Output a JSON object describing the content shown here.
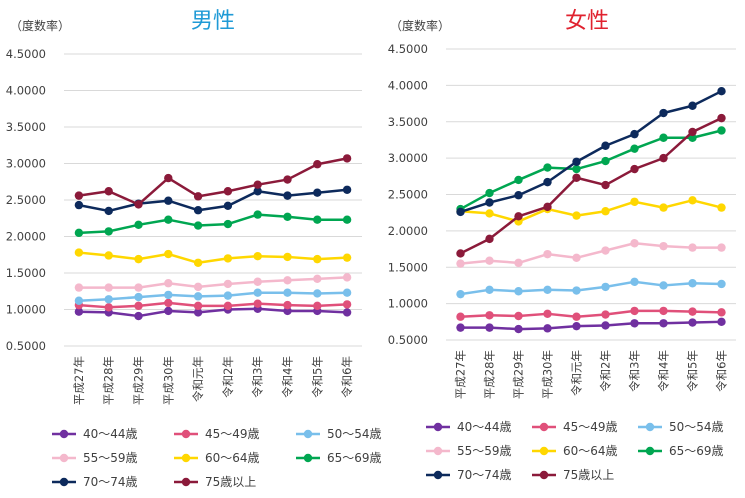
{
  "chart_data": [
    {
      "type": "line",
      "title": "男性",
      "ylabel": "（度数率）",
      "ylim": [
        0.5,
        4.5
      ],
      "yticks": [
        "0.5000",
        "1.0000",
        "1.5000",
        "2.0000",
        "2.5000",
        "3.0000",
        "3.5000",
        "4.0000",
        "4.5000"
      ],
      "categories": [
        "平成27年",
        "平成28年",
        "平成29年",
        "平成30年",
        "令和元年",
        "令和2年",
        "令和3年",
        "令和4年",
        "令和5年",
        "令和6年"
      ],
      "grid": "horizontal",
      "legend_placement": "bottom",
      "series": [
        {
          "name": "40～44歳",
          "color": "#7030a0",
          "values": [
            0.97,
            0.96,
            0.91,
            0.98,
            0.96,
            1.0,
            1.01,
            0.98,
            0.98,
            0.96
          ]
        },
        {
          "name": "45～49歳",
          "color": "#e0507a",
          "values": [
            1.06,
            1.03,
            1.05,
            1.09,
            1.05,
            1.05,
            1.08,
            1.06,
            1.05,
            1.07
          ]
        },
        {
          "name": "50～54歳",
          "color": "#79bfeb",
          "values": [
            1.12,
            1.14,
            1.17,
            1.2,
            1.18,
            1.19,
            1.23,
            1.23,
            1.22,
            1.23
          ]
        },
        {
          "name": "55～59歳",
          "color": "#f4b8cc",
          "values": [
            1.3,
            1.3,
            1.3,
            1.36,
            1.31,
            1.35,
            1.38,
            1.4,
            1.42,
            1.44
          ]
        },
        {
          "name": "60～64歳",
          "color": "#ffd700",
          "values": [
            1.78,
            1.74,
            1.69,
            1.76,
            1.64,
            1.7,
            1.73,
            1.72,
            1.69,
            1.71
          ]
        },
        {
          "name": "65～69歳",
          "color": "#00a651",
          "values": [
            2.05,
            2.07,
            2.16,
            2.23,
            2.15,
            2.17,
            2.3,
            2.27,
            2.23,
            2.23
          ]
        },
        {
          "name": "70～74歳",
          "color": "#0d2a5c",
          "values": [
            2.43,
            2.35,
            2.45,
            2.49,
            2.36,
            2.42,
            2.62,
            2.56,
            2.6,
            2.64
          ]
        },
        {
          "name": "75歳以上",
          "color": "#8b1a3a",
          "values": [
            2.56,
            2.62,
            2.44,
            2.8,
            2.55,
            2.62,
            2.71,
            2.78,
            2.99,
            3.07
          ]
        }
      ]
    },
    {
      "type": "line",
      "title": "女性",
      "ylabel": "（度数率）",
      "ylim": [
        0.5,
        4.5
      ],
      "yticks": [
        "0.5000",
        "1.0000",
        "1.5000",
        "2.0000",
        "2.5000",
        "3.0000",
        "3.5000",
        "4.0000",
        "4.5000"
      ],
      "categories": [
        "平成27年",
        "平成28年",
        "平成29年",
        "平成30年",
        "令和元年",
        "令和2年",
        "令和3年",
        "令和4年",
        "令和5年",
        "令和6年"
      ],
      "grid": "horizontal",
      "legend_placement": "bottom",
      "series": [
        {
          "name": "40～44歳",
          "color": "#7030a0",
          "values": [
            0.67,
            0.67,
            0.65,
            0.66,
            0.69,
            0.7,
            0.73,
            0.73,
            0.74,
            0.75
          ]
        },
        {
          "name": "45～49歳",
          "color": "#e0507a",
          "values": [
            0.82,
            0.84,
            0.83,
            0.86,
            0.82,
            0.85,
            0.9,
            0.9,
            0.89,
            0.88
          ]
        },
        {
          "name": "50～54歳",
          "color": "#79bfeb",
          "values": [
            1.13,
            1.19,
            1.17,
            1.19,
            1.18,
            1.23,
            1.3,
            1.25,
            1.28,
            1.27
          ]
        },
        {
          "name": "55～59歳",
          "color": "#f4b8cc",
          "values": [
            1.55,
            1.59,
            1.56,
            1.68,
            1.63,
            1.73,
            1.83,
            1.79,
            1.77,
            1.77
          ]
        },
        {
          "name": "60～64歳",
          "color": "#ffd700",
          "values": [
            2.27,
            2.24,
            2.13,
            2.3,
            2.21,
            2.27,
            2.4,
            2.32,
            2.42,
            2.32
          ]
        },
        {
          "name": "65～69歳",
          "color": "#00a651",
          "values": [
            2.3,
            2.52,
            2.7,
            2.87,
            2.85,
            2.96,
            3.13,
            3.28,
            3.28,
            3.38
          ]
        },
        {
          "name": "70～74歳",
          "color": "#0d2a5c",
          "values": [
            2.26,
            2.39,
            2.49,
            2.67,
            2.95,
            3.17,
            3.33,
            3.62,
            3.72,
            3.92
          ]
        },
        {
          "name": "75歳以上",
          "color": "#8b1a3a",
          "values": [
            1.69,
            1.89,
            2.2,
            2.33,
            2.73,
            2.63,
            2.85,
            3.0,
            3.36,
            3.55
          ]
        }
      ]
    }
  ],
  "colors": {
    "title_male": "#1f9ad6",
    "title_female": "#e0222f",
    "grid": "#d9d9d9",
    "axis_text": "#404040"
  }
}
